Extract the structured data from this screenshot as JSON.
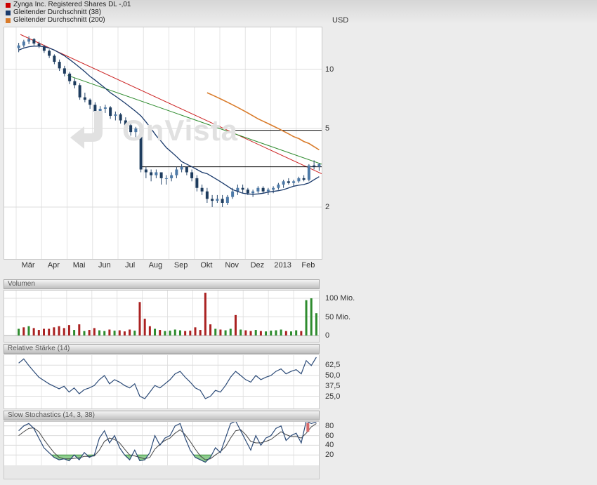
{
  "header": {
    "legend": [
      {
        "label": "Zynga Inc. Registered Shares DL -,01",
        "color": "#cc0000"
      },
      {
        "label": "Gleitender Durchschnitt (38)",
        "color": "#1a3a6b"
      },
      {
        "label": "Gleitender Durchschnitt (200)",
        "color": "#d97b2a"
      }
    ],
    "currency": "USD"
  },
  "watermark": "OnVista",
  "panels": {
    "volume": {
      "title": "Volumen"
    },
    "rsi": {
      "title": "Relative Stärke (14)"
    },
    "stoch": {
      "title": "Slow Stochastics (14, 3, 38)"
    }
  },
  "chart_data": [
    {
      "type": "candlestick",
      "title": "Zynga Inc. Registered Shares DL -,01",
      "currency": "USD",
      "scale": "log",
      "ylim": [
        1.09,
        16.3
      ],
      "yticks": [
        {
          "value": 10,
          "label": "10"
        },
        {
          "value": 5,
          "label": "5"
        },
        {
          "value": 2,
          "label": "2"
        }
      ],
      "months": [
        "Mär",
        "Apr",
        "Mai",
        "Jun",
        "Jul",
        "Aug",
        "Sep",
        "Okt",
        "Nov",
        "Dez",
        "2013",
        "Feb"
      ],
      "ohlc": [
        [
          12.8,
          13.6,
          12.2,
          13.2
        ],
        [
          13.2,
          14.1,
          12.9,
          13.8
        ],
        [
          13.8,
          14.7,
          13.4,
          14.2
        ],
        [
          14.2,
          14.4,
          13.2,
          13.5
        ],
        [
          13.5,
          13.8,
          12.8,
          13.1
        ],
        [
          13.1,
          13.3,
          12.1,
          12.4
        ],
        [
          12.4,
          12.6,
          11.4,
          11.7
        ],
        [
          11.7,
          11.9,
          10.6,
          10.9
        ],
        [
          10.9,
          11.2,
          9.8,
          10.1
        ],
        [
          10.1,
          10.4,
          9.2,
          9.5
        ],
        [
          9.5,
          9.7,
          8.4,
          8.7
        ],
        [
          8.7,
          9.0,
          8.0,
          8.3
        ],
        [
          8.3,
          8.5,
          7.0,
          7.2
        ],
        [
          7.2,
          7.6,
          6.8,
          7.0
        ],
        [
          7.0,
          7.1,
          6.3,
          6.6
        ],
        [
          6.6,
          6.8,
          5.9,
          6.1
        ],
        [
          6.1,
          6.5,
          5.8,
          6.3
        ],
        [
          6.3,
          6.6,
          6.0,
          6.4
        ],
        [
          6.4,
          6.5,
          5.6,
          5.8
        ],
        [
          5.8,
          6.1,
          5.5,
          5.9
        ],
        [
          5.9,
          6.0,
          5.3,
          5.5
        ],
        [
          5.5,
          5.7,
          5.1,
          5.2
        ],
        [
          5.2,
          5.3,
          4.6,
          4.8
        ],
        [
          4.8,
          5.1,
          4.5,
          5.0
        ],
        [
          5.0,
          5.1,
          3.0,
          3.1
        ],
        [
          3.1,
          3.2,
          2.8,
          3.0
        ],
        [
          3.0,
          3.1,
          2.7,
          2.9
        ],
        [
          2.9,
          3.1,
          2.8,
          3.0
        ],
        [
          3.0,
          3.0,
          2.6,
          2.8
        ],
        [
          2.8,
          2.9,
          2.6,
          2.8
        ],
        [
          2.8,
          3.0,
          2.7,
          2.9
        ],
        [
          2.9,
          3.2,
          2.8,
          3.1
        ],
        [
          3.1,
          3.3,
          3.0,
          3.2
        ],
        [
          3.2,
          3.2,
          2.9,
          3.0
        ],
        [
          3.0,
          3.1,
          2.7,
          2.8
        ],
        [
          2.8,
          2.9,
          2.4,
          2.5
        ],
        [
          2.5,
          2.6,
          2.3,
          2.4
        ],
        [
          2.4,
          2.5,
          2.1,
          2.2
        ],
        [
          2.2,
          2.3,
          2.0,
          2.15
        ],
        [
          2.15,
          2.3,
          2.1,
          2.2
        ],
        [
          2.2,
          2.3,
          2.0,
          2.1
        ],
        [
          2.1,
          2.3,
          2.05,
          2.25
        ],
        [
          2.25,
          2.5,
          2.2,
          2.4
        ],
        [
          2.4,
          2.6,
          2.3,
          2.5
        ],
        [
          2.5,
          2.6,
          2.35,
          2.45
        ],
        [
          2.45,
          2.5,
          2.3,
          2.35
        ],
        [
          2.35,
          2.45,
          2.25,
          2.4
        ],
        [
          2.4,
          2.55,
          2.35,
          2.5
        ],
        [
          2.5,
          2.55,
          2.35,
          2.4
        ],
        [
          2.4,
          2.5,
          2.3,
          2.45
        ],
        [
          2.45,
          2.55,
          2.35,
          2.5
        ],
        [
          2.5,
          2.65,
          2.45,
          2.6
        ],
        [
          2.6,
          2.75,
          2.5,
          2.7
        ],
        [
          2.7,
          2.8,
          2.6,
          2.65
        ],
        [
          2.65,
          2.75,
          2.55,
          2.7
        ],
        [
          2.7,
          2.85,
          2.65,
          2.8
        ],
        [
          2.8,
          2.9,
          2.7,
          2.75
        ],
        [
          2.75,
          3.3,
          2.7,
          3.25
        ],
        [
          3.25,
          3.45,
          3.1,
          3.2
        ],
        [
          3.2,
          3.35,
          3.05,
          3.3
        ]
      ],
      "ma38": [
        12.5,
        12.8,
        13.0,
        13.1,
        13.1,
        13.0,
        12.8,
        12.5,
        12.1,
        11.7,
        11.2,
        10.7,
        10.2,
        9.7,
        9.2,
        8.8,
        8.4,
        8.0,
        7.6,
        7.3,
        7.0,
        6.7,
        6.4,
        6.1,
        5.8,
        5.4,
        5.0,
        4.6,
        4.3,
        4.0,
        3.8,
        3.6,
        3.4,
        3.3,
        3.2,
        3.1,
        3.0,
        2.95,
        2.85,
        2.75,
        2.65,
        2.55,
        2.45,
        2.4,
        2.35,
        2.33,
        2.32,
        2.33,
        2.35,
        2.38,
        2.4,
        2.42,
        2.45,
        2.5,
        2.55,
        2.58,
        2.6,
        2.65,
        2.75,
        2.85
      ],
      "ma200": [
        null,
        null,
        null,
        null,
        null,
        null,
        null,
        null,
        null,
        null,
        null,
        null,
        null,
        null,
        null,
        null,
        null,
        null,
        null,
        null,
        null,
        null,
        null,
        null,
        null,
        null,
        null,
        null,
        null,
        null,
        null,
        null,
        null,
        null,
        null,
        null,
        null,
        7.6,
        7.4,
        7.2,
        7.0,
        6.8,
        6.6,
        6.4,
        6.2,
        6.0,
        5.8,
        5.6,
        5.45,
        5.3,
        5.15,
        5.0,
        4.85,
        4.7,
        4.55,
        4.45,
        4.3,
        4.2,
        4.05,
        3.9
      ],
      "trendlines": [
        {
          "x1_frac": 0.051,
          "price1": 15.0,
          "x2_frac": 1.0,
          "price2": 2.95,
          "color": "#cc2222"
        },
        {
          "x1_frac": 0.2,
          "price1": 9.3,
          "x2_frac": 1.0,
          "price2": 3.3,
          "color": "#2e8b2e"
        }
      ],
      "hlines": [
        {
          "price": 4.9,
          "x1_frac": 0.716,
          "x2_frac": 1.0,
          "color": "#000000"
        },
        {
          "price": 3.2,
          "x1_frac": 0.43,
          "x2_frac": 1.0,
          "color": "#000000"
        }
      ],
      "colors": {
        "up": "#4d7aa8",
        "down": "#1e3c5e",
        "wick": "#26466b",
        "ma38": "#1a3a6b",
        "ma200": "#d97b2a"
      }
    },
    {
      "type": "bar",
      "title": "Volumen",
      "unit": "Mio.",
      "ylim": [
        0,
        122
      ],
      "yticks": [
        {
          "value": 100,
          "label": "100 Mio."
        },
        {
          "value": 50,
          "label": "50 Mio."
        },
        {
          "value": 0,
          "label": "0"
        }
      ],
      "values": [
        18,
        22,
        25,
        20,
        15,
        18,
        18,
        22,
        25,
        20,
        28,
        15,
        30,
        12,
        15,
        20,
        14,
        12,
        16,
        13,
        14,
        11,
        16,
        13,
        90,
        45,
        25,
        18,
        15,
        12,
        13,
        16,
        14,
        12,
        13,
        22,
        15,
        115,
        30,
        18,
        16,
        14,
        18,
        55,
        16,
        14,
        12,
        15,
        12,
        11,
        13,
        14,
        16,
        12,
        11,
        14,
        12,
        95,
        100,
        60
      ],
      "colors": [
        "g",
        "r",
        "g",
        "r",
        "r",
        "r",
        "r",
        "r",
        "r",
        "r",
        "r",
        "g",
        "r",
        "g",
        "r",
        "r",
        "g",
        "g",
        "r",
        "g",
        "r",
        "r",
        "r",
        "g",
        "r",
        "r",
        "r",
        "g",
        "r",
        "g",
        "g",
        "g",
        "g",
        "r",
        "r",
        "r",
        "r",
        "r",
        "r",
        "g",
        "r",
        "g",
        "g",
        "r",
        "g",
        "r",
        "r",
        "g",
        "r",
        "g",
        "g",
        "g",
        "g",
        "r",
        "g",
        "g",
        "r",
        "g",
        "g",
        "g"
      ],
      "bar_colors": {
        "g": "#2e8b2e",
        "r": "#aa2222"
      }
    },
    {
      "type": "line",
      "title": "Relative Stärke (14)",
      "ylim": [
        5,
        78
      ],
      "yticks": [
        {
          "value": 62.5,
          "label": "62,5"
        },
        {
          "value": 50,
          "label": "50,0"
        },
        {
          "value": 37.5,
          "label": "37,5"
        },
        {
          "value": 25,
          "label": "25,0"
        }
      ],
      "values": [
        65,
        70,
        62,
        55,
        48,
        44,
        40,
        37,
        34,
        37,
        30,
        35,
        28,
        33,
        35,
        38,
        45,
        50,
        40,
        45,
        42,
        38,
        35,
        40,
        25,
        22,
        30,
        38,
        35,
        40,
        45,
        52,
        55,
        48,
        42,
        35,
        32,
        22,
        25,
        32,
        30,
        38,
        48,
        55,
        50,
        45,
        42,
        50,
        45,
        48,
        50,
        55,
        58,
        52,
        55,
        57,
        52,
        68,
        62,
        72
      ],
      "line_color": "#2b4a77"
    },
    {
      "type": "line2",
      "title": "Slow Stochastics (14, 3, 38)",
      "ylim": [
        0,
        100
      ],
      "oversold": 20,
      "overbought": 80,
      "yticks": [
        {
          "value": 80,
          "label": "80"
        },
        {
          "value": 60,
          "label": "60"
        },
        {
          "value": 40,
          "label": "40"
        },
        {
          "value": 20,
          "label": "20"
        }
      ],
      "k": [
        70,
        80,
        85,
        75,
        55,
        35,
        25,
        15,
        10,
        12,
        8,
        20,
        10,
        25,
        15,
        20,
        55,
        70,
        45,
        60,
        35,
        20,
        10,
        30,
        8,
        10,
        25,
        60,
        40,
        55,
        60,
        80,
        85,
        55,
        30,
        15,
        10,
        5,
        15,
        35,
        25,
        55,
        85,
        90,
        70,
        50,
        30,
        60,
        40,
        55,
        60,
        75,
        80,
        50,
        60,
        65,
        45,
        90,
        85,
        88
      ],
      "d": [
        60,
        68,
        75,
        76,
        68,
        52,
        38,
        25,
        15,
        12,
        12,
        13,
        14,
        17,
        17,
        18,
        30,
        48,
        55,
        52,
        45,
        32,
        20,
        18,
        15,
        12,
        15,
        32,
        42,
        50,
        55,
        65,
        72,
        62,
        48,
        32,
        18,
        10,
        12,
        20,
        27,
        37,
        55,
        70,
        72,
        62,
        48,
        45,
        45,
        48,
        52,
        60,
        68,
        62,
        58,
        58,
        55,
        65,
        78,
        85
      ],
      "k_color": "#2b4a77",
      "d_color": "#444444",
      "oversold_fill": "#8fce8f",
      "oversold_stroke": "#2e8b2e",
      "marker": {
        "x_frac": 0.965,
        "from": 68,
        "to": 86,
        "color": "#d66a6a"
      }
    }
  ]
}
